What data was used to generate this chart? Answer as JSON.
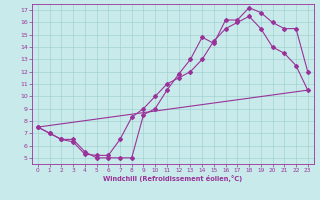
{
  "title": "",
  "xlabel": "Windchill (Refroidissement éolien,°C)",
  "bg_color": "#c8eaea",
  "line_color": "#993399",
  "grid_color": "#99cccc",
  "spine_color": "#993399",
  "xlim": [
    -0.5,
    23.5
  ],
  "ylim": [
    4.5,
    17.5
  ],
  "yticks": [
    5,
    6,
    7,
    8,
    9,
    10,
    11,
    12,
    13,
    14,
    15,
    16,
    17
  ],
  "xticks": [
    0,
    1,
    2,
    3,
    4,
    5,
    6,
    7,
    8,
    9,
    10,
    11,
    12,
    13,
    14,
    15,
    16,
    17,
    18,
    19,
    20,
    21,
    22,
    23
  ],
  "line1_x": [
    0,
    1,
    2,
    3,
    4,
    5,
    6,
    7,
    8,
    9,
    10,
    11,
    12,
    13,
    14,
    15,
    16,
    17,
    18,
    19,
    20,
    21,
    22,
    23
  ],
  "line1_y": [
    7.5,
    7.0,
    6.5,
    6.5,
    5.5,
    5.0,
    5.0,
    5.0,
    5.0,
    8.5,
    9.0,
    10.5,
    11.8,
    13.0,
    14.8,
    14.3,
    16.2,
    16.2,
    17.2,
    16.8,
    16.0,
    15.5,
    15.5,
    12.0
  ],
  "line2_x": [
    0,
    1,
    2,
    3,
    4,
    5,
    6,
    7,
    8,
    9,
    10,
    11,
    12,
    13,
    14,
    15,
    16,
    17,
    18,
    19,
    20,
    21,
    22,
    23
  ],
  "line2_y": [
    7.5,
    7.0,
    6.5,
    6.3,
    5.3,
    5.2,
    5.2,
    6.5,
    8.3,
    9.0,
    10.0,
    11.0,
    11.5,
    12.0,
    13.0,
    14.5,
    15.5,
    16.0,
    16.5,
    15.5,
    14.0,
    13.5,
    12.5,
    10.5
  ],
  "line3_x": [
    0,
    23
  ],
  "line3_y": [
    7.5,
    10.5
  ]
}
